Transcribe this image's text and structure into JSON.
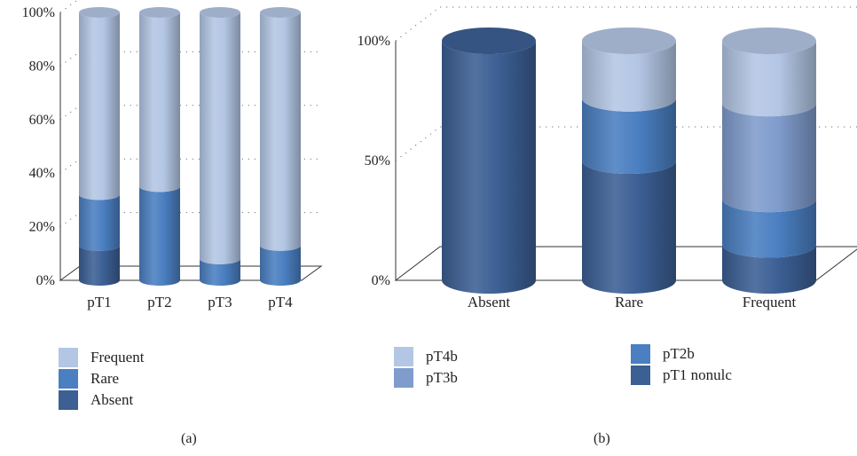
{
  "chart_data": [
    {
      "type": "bar",
      "subtype": "stacked-percent-3d-cylinder",
      "panel_label": "(a)",
      "categories": [
        "pT1",
        "pT2",
        "pT3",
        "pT4"
      ],
      "y_ticks": [
        "0%",
        "20%",
        "40%",
        "60%",
        "80%",
        "100%"
      ],
      "ylim": [
        0,
        100
      ],
      "grid": "dotted horizontal",
      "legend_position": "bottom",
      "series": [
        {
          "name": "Absent",
          "color": "#3c5f94",
          "values": [
            13,
            0,
            0,
            0
          ]
        },
        {
          "name": "Rare",
          "color": "#4a7fc1",
          "values": [
            19,
            35,
            8,
            13
          ]
        },
        {
          "name": "Frequent",
          "color": "#b3c6e4",
          "values": [
            68,
            65,
            92,
            87
          ]
        }
      ],
      "legend": [
        "Frequent",
        "Rare",
        "Absent"
      ]
    },
    {
      "type": "bar",
      "subtype": "stacked-percent-3d-cylinder",
      "panel_label": "(b)",
      "categories": [
        "Absent",
        "Rare",
        "Frequent"
      ],
      "y_ticks": [
        "0%",
        "50%",
        "100%"
      ],
      "ylim": [
        0,
        100
      ],
      "grid": "dotted horizontal",
      "legend_position": "bottom",
      "series": [
        {
          "name": "pT1 nonulc",
          "color": "#3c5f94",
          "values": [
            100,
            50,
            15
          ]
        },
        {
          "name": "pT2b",
          "color": "#4a7fc1",
          "values": [
            0,
            26,
            19
          ]
        },
        {
          "name": "pT3b",
          "color": "#7f9ccc",
          "values": [
            0,
            0,
            40
          ]
        },
        {
          "name": "pT4b",
          "color": "#b3c6e4",
          "values": [
            0,
            24,
            26
          ]
        }
      ],
      "legend": [
        "pT4b",
        "pT3b",
        "pT2b",
        "pT1 nonulc"
      ]
    }
  ]
}
